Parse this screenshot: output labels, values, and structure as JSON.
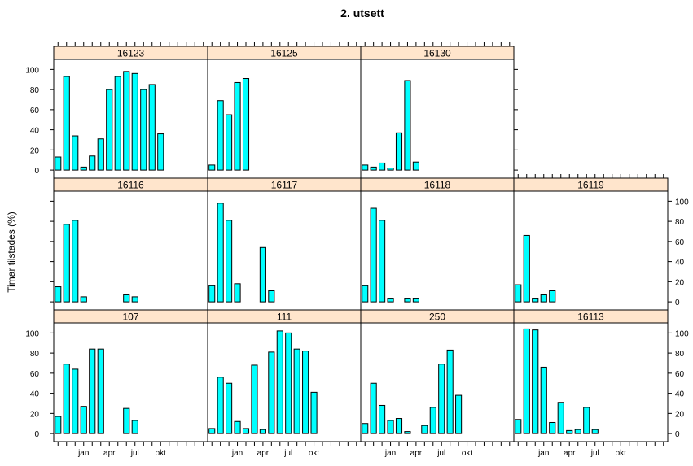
{
  "chart_data": {
    "type": "bar",
    "title": "2. utsett",
    "ylabel": "Timar tilstades (%)",
    "ylim": [
      -8,
      110
    ],
    "yticks": [
      0,
      20,
      40,
      60,
      80,
      100
    ],
    "x_positions": [
      0,
      1,
      2,
      3,
      4,
      5,
      6,
      7,
      8,
      9,
      10,
      11,
      12,
      13,
      14,
      15,
      16,
      17
    ],
    "x_tick_labels": [
      {
        "pos": 3,
        "label": "jan"
      },
      {
        "pos": 6,
        "label": "apr"
      },
      {
        "pos": 9,
        "label": "jul"
      },
      {
        "pos": 12,
        "label": "okt"
      }
    ],
    "fill_color": "#00ffff",
    "strip_color": "#ffe5cc",
    "layout_rows": [
      [
        "16123",
        "16125",
        "16130",
        null
      ],
      [
        "16116",
        "16117",
        "16118",
        "16119"
      ],
      [
        "107",
        "111",
        "250",
        "16113"
      ]
    ],
    "panels": [
      {
        "name": "16123",
        "values": [
          13,
          93,
          34,
          3,
          14,
          31,
          80,
          93,
          98,
          96,
          80,
          85,
          36,
          null,
          null,
          null,
          null,
          null
        ]
      },
      {
        "name": "16125",
        "values": [
          5,
          69,
          55,
          87,
          91,
          null,
          null,
          null,
          null,
          null,
          null,
          null,
          null,
          null,
          null,
          null,
          null,
          null
        ]
      },
      {
        "name": "16130",
        "values": [
          5,
          3,
          7,
          2,
          37,
          89,
          8,
          null,
          null,
          null,
          null,
          null,
          null,
          null,
          null,
          null,
          null,
          null
        ]
      },
      {
        "name": "16116",
        "values": [
          15,
          77,
          81,
          5,
          null,
          null,
          null,
          null,
          7,
          5,
          null,
          null,
          null,
          null,
          null,
          null,
          null,
          null
        ]
      },
      {
        "name": "16117",
        "values": [
          16,
          98,
          81,
          18,
          null,
          null,
          54,
          11,
          null,
          null,
          null,
          null,
          null,
          null,
          null,
          null,
          null,
          null
        ]
      },
      {
        "name": "16118",
        "values": [
          16,
          93,
          81,
          3,
          null,
          3,
          3,
          null,
          null,
          null,
          null,
          null,
          null,
          null,
          null,
          null,
          null,
          null
        ]
      },
      {
        "name": "16119",
        "values": [
          17,
          66,
          3,
          7,
          11,
          null,
          null,
          null,
          null,
          null,
          null,
          null,
          null,
          null,
          null,
          null,
          null,
          null
        ]
      },
      {
        "name": "107",
        "values": [
          17,
          69,
          64,
          27,
          84,
          84,
          null,
          null,
          25,
          13,
          null,
          null,
          null,
          null,
          null,
          null,
          null,
          null
        ]
      },
      {
        "name": "111",
        "values": [
          5,
          56,
          50,
          12,
          5,
          68,
          4,
          81,
          102,
          100,
          84,
          82,
          41,
          null,
          null,
          null,
          null,
          null
        ]
      },
      {
        "name": "250",
        "values": [
          10,
          50,
          28,
          13,
          15,
          2,
          null,
          8,
          26,
          69,
          83,
          38,
          null,
          null,
          null,
          null,
          null,
          null
        ]
      },
      {
        "name": "16113",
        "values": [
          14,
          104,
          103,
          66,
          11,
          31,
          3,
          4,
          26,
          4,
          null,
          null,
          null,
          null,
          null,
          null,
          null,
          null
        ]
      }
    ]
  }
}
